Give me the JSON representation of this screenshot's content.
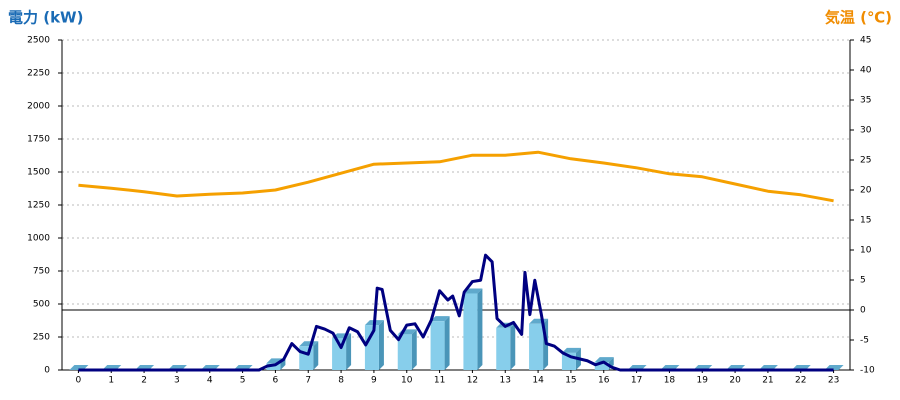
{
  "chart_data": {
    "type": "bar",
    "y_label": "電力 (kW)",
    "y2_label": "気温 (℃)",
    "categories": [
      "0",
      "1",
      "2",
      "3",
      "4",
      "5",
      "6",
      "7",
      "8",
      "9",
      "10",
      "11",
      "12",
      "13",
      "14",
      "15",
      "16",
      "17",
      "18",
      "19",
      "20",
      "21",
      "22",
      "23"
    ],
    "ylim": [
      0,
      2500
    ],
    "yticks": [
      0,
      250,
      500,
      750,
      1000,
      1250,
      1500,
      1750,
      2000,
      2250,
      2500
    ],
    "y2lim": [
      -10,
      45
    ],
    "y2ticks": [
      -10,
      -5,
      0,
      5,
      10,
      15,
      20,
      25,
      30,
      35,
      40,
      45
    ],
    "grid": true,
    "series": [
      {
        "type": "bar",
        "color": "#87ceeb",
        "values": [
          0,
          0,
          0,
          0,
          0,
          0,
          50,
          180,
          240,
          340,
          270,
          370,
          580,
          320,
          350,
          130,
          60,
          0,
          0,
          0,
          0,
          0,
          0,
          0
        ]
      },
      {
        "type": "line",
        "color": "#000080",
        "x": [
          0,
          5.5,
          5.75,
          6,
          6.25,
          6.5,
          6.75,
          7,
          7.25,
          7.5,
          7.75,
          8,
          8.25,
          8.5,
          8.75,
          9,
          9.1,
          9.25,
          9.5,
          9.75,
          10,
          10.25,
          10.5,
          10.75,
          11,
          11.25,
          11.4,
          11.6,
          11.75,
          12,
          12.25,
          12.4,
          12.6,
          12.75,
          13,
          13.25,
          13.5,
          13.6,
          13.75,
          13.9,
          14.1,
          14.25,
          14.5,
          14.75,
          15,
          15.5,
          15.75,
          16,
          16.25,
          16.5,
          23
        ],
        "values": [
          0,
          0,
          30,
          40,
          80,
          200,
          140,
          120,
          330,
          310,
          280,
          170,
          320,
          290,
          190,
          300,
          620,
          610,
          300,
          230,
          340,
          350,
          250,
          380,
          600,
          530,
          560,
          410,
          590,
          670,
          680,
          870,
          820,
          390,
          330,
          360,
          270,
          740,
          420,
          680,
          420,
          200,
          180,
          130,
          100,
          70,
          40,
          60,
          20,
          0,
          0
        ]
      },
      {
        "type": "line",
        "axis": "y2",
        "color": "#f5a000",
        "values": [
          20.8,
          20.3,
          19.7,
          19,
          19.3,
          19.5,
          20,
          21.3,
          22.8,
          24.3,
          24.5,
          24.7,
          25.8,
          25.8,
          26.3,
          25.2,
          24.5,
          23.7,
          22.7,
          22.2,
          21,
          19.8,
          19.2,
          18.2
        ]
      }
    ]
  }
}
